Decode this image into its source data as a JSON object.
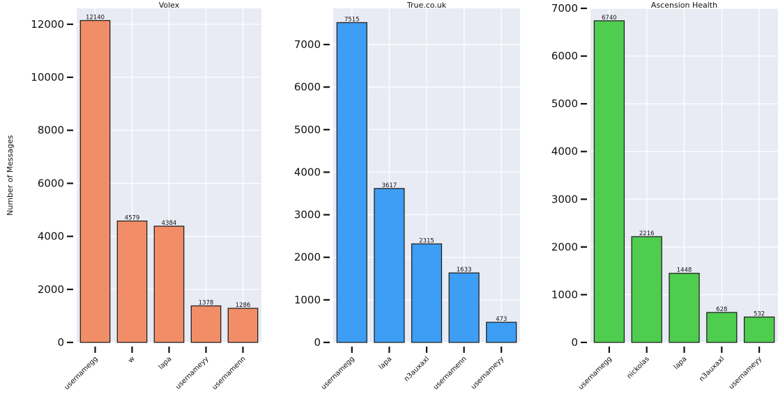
{
  "chart_data": [
    {
      "type": "bar",
      "title": "Volex",
      "ylabel": "Number of Messages",
      "xlabel": "",
      "categories": [
        "usernamegg",
        "w",
        "lapa",
        "usernameyy",
        "usernamenn"
      ],
      "values": [
        12140,
        4579,
        4384,
        1378,
        1286
      ],
      "ylim": [
        0,
        12600
      ],
      "yticks": [
        0,
        2000,
        4000,
        6000,
        8000,
        10000,
        12000
      ],
      "color": "#f28e67",
      "grid": true
    },
    {
      "type": "bar",
      "title": "True.co.uk",
      "ylabel": "",
      "xlabel": "",
      "categories": [
        "usernamegg",
        "lapa",
        "n3auxaxl",
        "usernamenn",
        "usernameyy"
      ],
      "values": [
        7515,
        3617,
        2315,
        1633,
        473
      ],
      "ylim": [
        0,
        7850
      ],
      "yticks": [
        0,
        1000,
        2000,
        3000,
        4000,
        5000,
        6000,
        7000
      ],
      "color": "#3d9ef5",
      "grid": true
    },
    {
      "type": "bar",
      "title": "Ascension Health",
      "ylabel": "",
      "xlabel": "",
      "categories": [
        "usernamegg",
        "nickolas",
        "lapa",
        "n3auxaxl",
        "usernameyy"
      ],
      "values": [
        6740,
        2216,
        1448,
        628,
        532
      ],
      "ylim": [
        0,
        7000
      ],
      "yticks": [
        0,
        1000,
        2000,
        3000,
        4000,
        5000,
        6000,
        7000
      ],
      "color": "#4fcd4f",
      "grid": true
    }
  ]
}
